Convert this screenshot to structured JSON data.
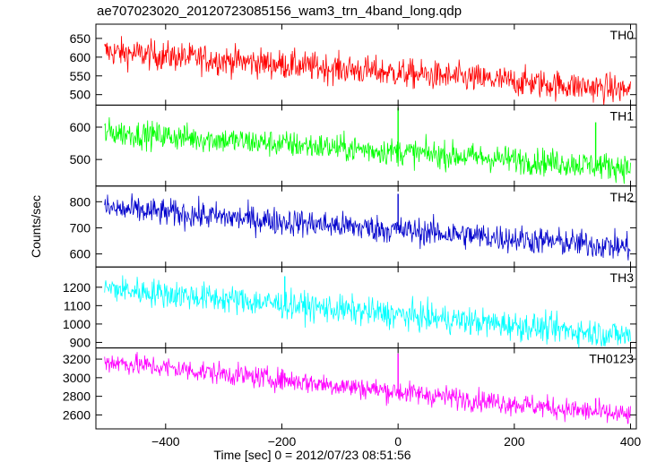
{
  "title": "ae707023020_20120723085156_wam3_trn_4band_long.qdp",
  "chart_data": {
    "type": "line",
    "xlabel": "Time [sec] 0 = 2012/07/23 08:51:56",
    "ylabel": "Counts/sec",
    "xlim": [
      -520,
      410
    ],
    "xticks": [
      -400,
      -200,
      0,
      200,
      400
    ],
    "x_start": -505,
    "x_end": 400,
    "x_step": 1,
    "grid": false,
    "panels": [
      {
        "name": "TH0",
        "color": "#ff0000",
        "ylim": [
          472,
          688
        ],
        "yticks": [
          500,
          550,
          600,
          650
        ],
        "trend_start": 615,
        "trend_end": 512,
        "noise": 28,
        "spikes": []
      },
      {
        "name": "TH1",
        "color": "#00ff00",
        "ylim": [
          418,
          668
        ],
        "yticks": [
          500,
          600
        ],
        "trend_start": 585,
        "trend_end": 475,
        "noise": 30,
        "spikes": [
          {
            "x": 0,
            "y": 660
          },
          {
            "x": 340,
            "y": 615
          }
        ]
      },
      {
        "name": "TH2",
        "color": "#0000cc",
        "ylim": [
          550,
          860
        ],
        "yticks": [
          600,
          700,
          800
        ],
        "trend_start": 775,
        "trend_end": 625,
        "noise": 38,
        "spikes": [
          {
            "x": 0,
            "y": 830
          }
        ]
      },
      {
        "name": "TH3",
        "color": "#00ffff",
        "ylim": [
          870,
          1310
        ],
        "yticks": [
          900,
          1000,
          1100,
          1200
        ],
        "trend_start": 1195,
        "trend_end": 935,
        "noise": 55,
        "spikes": [
          {
            "x": -195,
            "y": 1260
          }
        ]
      },
      {
        "name": "TH0123",
        "color": "#ff00ff",
        "ylim": [
          2450,
          3320
        ],
        "yticks": [
          2600,
          2800,
          3000,
          3200
        ],
        "trend_start": 3175,
        "trend_end": 2590,
        "noise": 85,
        "spikes": [
          {
            "x": 0,
            "y": 3260
          },
          {
            "x": -195,
            "y": 3050
          },
          {
            "x": 340,
            "y": 2780
          }
        ]
      }
    ]
  }
}
